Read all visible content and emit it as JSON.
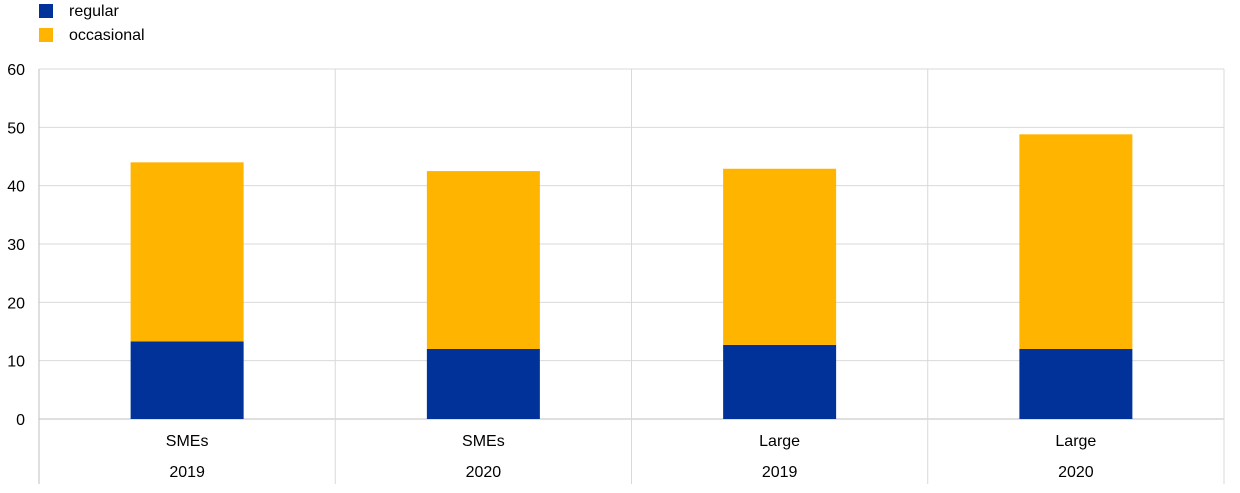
{
  "chart_data": {
    "type": "bar",
    "stacked": true,
    "title": "",
    "xlabel": "",
    "ylabel": "",
    "ylim": [
      0,
      60
    ],
    "yticks": [
      0,
      10,
      20,
      30,
      40,
      50,
      60
    ],
    "grid": true,
    "legend_position": "top-left",
    "categories": [
      {
        "group": "SMEs",
        "year": "2019"
      },
      {
        "group": "SMEs",
        "year": "2020"
      },
      {
        "group": "Large",
        "year": "2019"
      },
      {
        "group": "Large",
        "year": "2020"
      }
    ],
    "series": [
      {
        "name": "regular",
        "color": "#003299",
        "values": [
          13.3,
          12.0,
          12.7,
          12.0
        ]
      },
      {
        "name": "occasional",
        "color": "#FFB400",
        "values": [
          30.7,
          30.5,
          30.2,
          36.8
        ]
      }
    ]
  }
}
